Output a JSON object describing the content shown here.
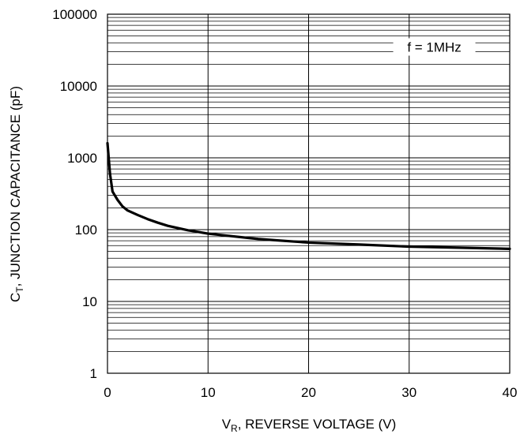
{
  "chart_data": {
    "type": "line",
    "title": "",
    "xlabel": {
      "main": "V",
      "sub": "R",
      "rest": ", REVERSE VOLTAGE (V)"
    },
    "ylabel": {
      "main": "C",
      "sub": "T",
      "rest": ", JUNCTION CAPACITANCE (pF)"
    },
    "x_scale": "linear",
    "y_scale": "log",
    "xlim": [
      0,
      40
    ],
    "ylim": [
      1,
      100000
    ],
    "x_ticks": [
      0,
      10,
      20,
      30,
      40
    ],
    "x_tick_labels": [
      "0",
      "10",
      "20",
      "30",
      "40"
    ],
    "y_ticks": [
      1,
      10,
      100,
      1000,
      10000,
      100000
    ],
    "y_tick_labels": [
      "1",
      "10",
      "100",
      "1000",
      "10000",
      "100000"
    ],
    "grid": true,
    "legend": "none",
    "annotation": {
      "text": "f = 1MHz",
      "placement": "top-right"
    },
    "line_color": "#000000",
    "series": [
      {
        "x": [
          0,
          0.25,
          0.5,
          1,
          1.5,
          2,
          3,
          4,
          5,
          6,
          8,
          10,
          12,
          15,
          20,
          25,
          30,
          35,
          40
        ],
        "y": [
          1600,
          600,
          340,
          260,
          210,
          185,
          160,
          140,
          125,
          113,
          98,
          88,
          82,
          74,
          66,
          62,
          58,
          56,
          54
        ]
      }
    ]
  }
}
